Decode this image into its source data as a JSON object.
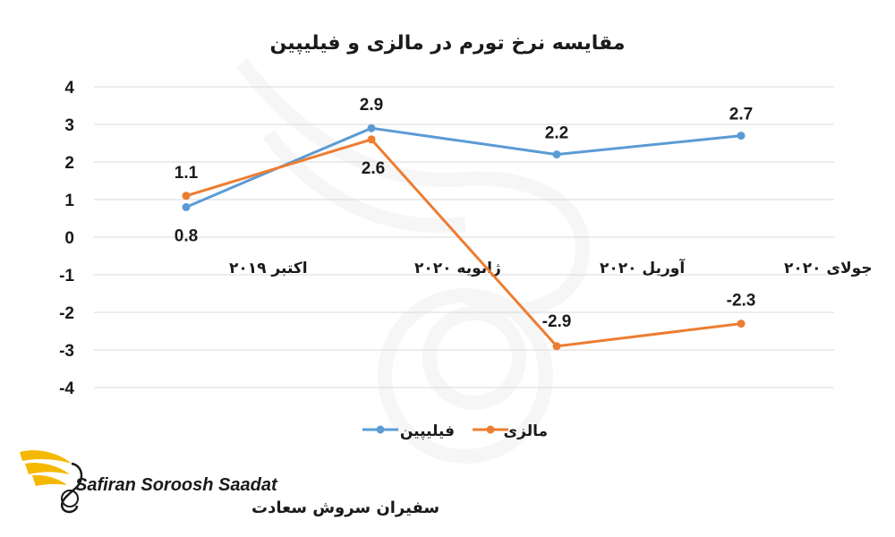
{
  "chart_data": {
    "type": "line",
    "title": "مقایسه نرخ تورم در مالزی و فیلیپین",
    "categories": [
      "اکتبر ۲۰۱۹",
      "ژانویه ۲۰۲۰",
      "آوریل ۲۰۲۰",
      "جولای ۲۰۲۰"
    ],
    "y_ticks": [
      "4",
      "3",
      "2",
      "1",
      "0",
      "-1",
      "-2",
      "-3",
      "-4"
    ],
    "ylim": [
      -4,
      4
    ],
    "grid": true,
    "legend_position": "bottom",
    "series": [
      {
        "name": "فیلیپین",
        "color": "#5b9bd5",
        "values": [
          0.8,
          2.9,
          2.2,
          2.7
        ],
        "labels": [
          "0.8",
          "2.9",
          "2.2",
          "2.7"
        ]
      },
      {
        "name": "مالزی",
        "color": "#ed7d31",
        "values": [
          1.1,
          2.6,
          -2.9,
          -2.3
        ],
        "labels": [
          "1.1",
          "2.6",
          "-2.9",
          "-2.3"
        ]
      }
    ]
  },
  "logo": {
    "name_en": "Safiran Soroosh Saadat",
    "name_fa": "سفیران سروش سعادت",
    "color": "#f5b800"
  }
}
